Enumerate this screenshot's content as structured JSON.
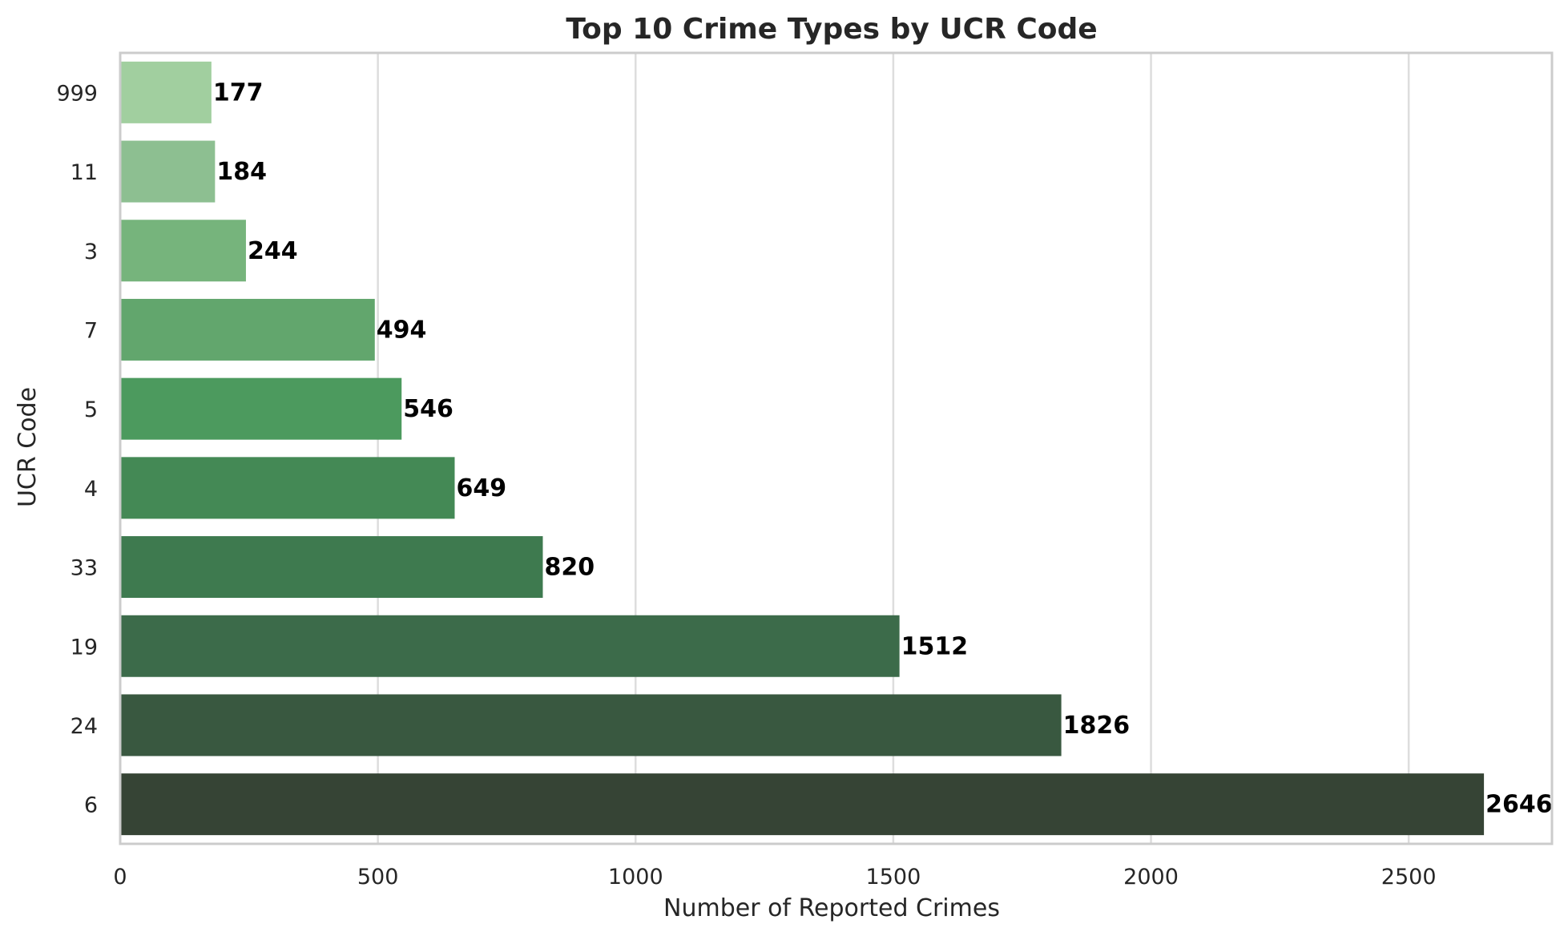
{
  "chart_data": {
    "type": "bar",
    "orientation": "horizontal",
    "title": "Top 10 Crime Types by UCR Code",
    "xlabel": "Number of Reported Crimes",
    "ylabel": "UCR Code",
    "categories": [
      "999",
      "11",
      "3",
      "7",
      "5",
      "4",
      "33",
      "19",
      "24",
      "6"
    ],
    "values": [
      177,
      184,
      244,
      494,
      546,
      649,
      820,
      1512,
      1826,
      2646
    ],
    "data_labels": [
      "177",
      "184",
      "244",
      "494",
      "546",
      "649",
      "820",
      "1512",
      "1826",
      "2646"
    ],
    "xlim": [
      0,
      2778
    ],
    "xticks": [
      0,
      500,
      1000,
      1500,
      2000,
      2500
    ],
    "xtick_labels": [
      "0",
      "500",
      "1000",
      "1500",
      "2000",
      "2500"
    ],
    "grid": "vertical",
    "colors": [
      "#a1cf9f",
      "#8dbf91",
      "#76b47c",
      "#62a66d",
      "#4c9a5e",
      "#448955",
      "#3e7a4f",
      "#3c6b4a",
      "#395840",
      "#364435"
    ]
  }
}
